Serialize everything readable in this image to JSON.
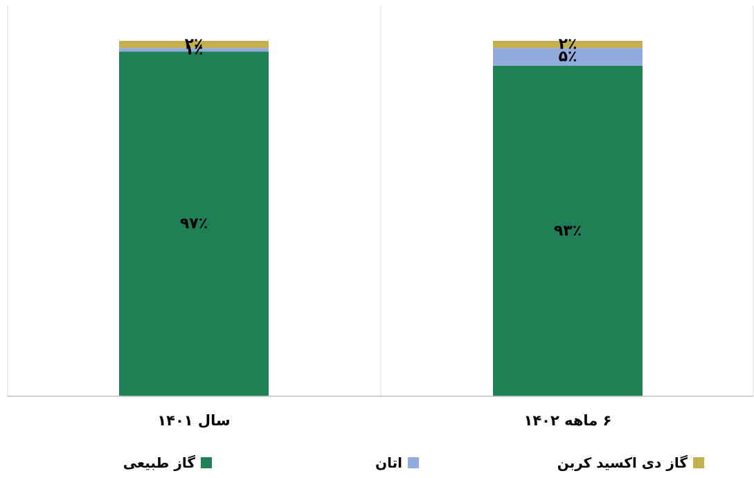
{
  "chart_data": {
    "type": "bar",
    "stacked": true,
    "percent": true,
    "categories": [
      "سال ۱۴۰۱",
      "۶ ماهه ۱۴۰۲"
    ],
    "series": [
      {
        "name": "گاز طبیعی",
        "values": [
          97,
          93
        ],
        "labels": [
          "۹۷٪",
          "۹۳٪"
        ],
        "color": "#207f56"
      },
      {
        "name": "اتان",
        "values": [
          1,
          5
        ],
        "labels": [
          "۱٪",
          "۵٪"
        ],
        "color": "#91acdc"
      },
      {
        "name": "گاز دی اکسید کربن",
        "values": [
          2,
          2
        ],
        "labels": [
          "۲٪",
          "۲٪"
        ],
        "color": "#c3b04d"
      }
    ],
    "ylim": [
      0,
      100
    ],
    "gridlines": false,
    "legend_position": "bottom"
  }
}
